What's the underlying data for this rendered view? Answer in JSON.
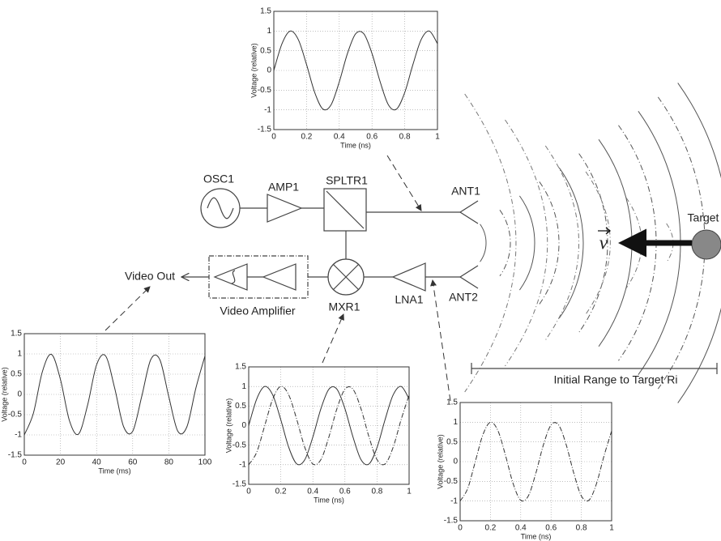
{
  "chart_data": [
    {
      "type": "line",
      "xlabel": "Time (ns)",
      "ylabel": "Voltage (relative)",
      "x": [
        0,
        0.05,
        0.1,
        0.15,
        0.2,
        0.25,
        0.3,
        0.35,
        0.4,
        0.45,
        0.5,
        0.55,
        0.6,
        0.65,
        0.7,
        0.75,
        0.8,
        0.85,
        0.9,
        0.95,
        1
      ],
      "series": [
        {
          "color": "#333333",
          "style": "solid",
          "values": [
            0,
            0.68,
            1.0,
            0.78,
            0.15,
            -0.56,
            -0.98,
            -0.87,
            -0.29,
            0.43,
            0.93,
            0.93,
            0.43,
            -0.29,
            -0.87,
            -0.98,
            -0.56,
            0.15,
            0.78,
            1.0,
            0.68
          ]
        }
      ],
      "xlim": [
        0,
        1
      ],
      "xticks": [
        0,
        0.2,
        0.4,
        0.6,
        0.8,
        1
      ],
      "ylim": [
        -1.5,
        1.5
      ],
      "yticks": [
        -1.5,
        -1,
        -0.5,
        0,
        0.5,
        1,
        1.5
      ],
      "grid": true
    },
    {
      "type": "line",
      "xlabel": "Time (ms)",
      "ylabel": "Voltage (relative)",
      "x": [
        0,
        5,
        10,
        15,
        20,
        25,
        30,
        35,
        40,
        45,
        50,
        55,
        60,
        65,
        70,
        75,
        80,
        85,
        90,
        95,
        100
      ],
      "series": [
        {
          "color": "#333333",
          "style": "solid",
          "values": [
            -1.0,
            -0.47,
            0.56,
            0.99,
            0.37,
            -0.65,
            -0.98,
            -0.27,
            0.73,
            0.95,
            0.16,
            -0.8,
            -0.91,
            -0.05,
            0.86,
            0.86,
            -0.06,
            -0.91,
            -0.8,
            0.16,
            0.95
          ]
        }
      ],
      "xlim": [
        0,
        100
      ],
      "xticks": [
        0,
        20,
        40,
        60,
        80,
        100
      ],
      "ylim": [
        -1.5,
        1.5
      ],
      "yticks": [
        -1.5,
        -1,
        -0.5,
        0,
        0.5,
        1,
        1.5
      ],
      "grid": true
    },
    {
      "type": "line",
      "xlabel": "Time (ns)",
      "ylabel": "Voltage (relative)",
      "x": [
        0,
        0.05,
        0.1,
        0.15,
        0.2,
        0.25,
        0.3,
        0.35,
        0.4,
        0.45,
        0.5,
        0.55,
        0.6,
        0.65,
        0.7,
        0.75,
        0.8,
        0.85,
        0.9,
        0.95,
        1
      ],
      "series": [
        {
          "color": "#333333",
          "style": "solid",
          "values": [
            0,
            0.68,
            1.0,
            0.78,
            0.15,
            -0.56,
            -0.98,
            -0.87,
            -0.29,
            0.43,
            0.93,
            0.93,
            0.43,
            -0.29,
            -0.87,
            -0.98,
            -0.56,
            0.15,
            0.78,
            1.0,
            0.68
          ]
        },
        {
          "color": "#333333",
          "style": "dash-dot",
          "values": [
            -1.0,
            -0.68,
            0,
            0.68,
            1.0,
            0.78,
            0.15,
            -0.56,
            -0.98,
            -0.87,
            -0.29,
            0.43,
            0.93,
            0.93,
            0.43,
            -0.29,
            -0.87,
            -0.98,
            -0.56,
            0.15,
            0.78
          ]
        }
      ],
      "xlim": [
        0,
        1
      ],
      "xticks": [
        0,
        0.2,
        0.4,
        0.6,
        0.8,
        1
      ],
      "ylim": [
        -1.5,
        1.5
      ],
      "yticks": [
        -1.5,
        -1,
        -0.5,
        0,
        0.5,
        1,
        1.5
      ],
      "grid": true
    },
    {
      "type": "line",
      "xlabel": "Time (ns)",
      "ylabel": "Voltage (relative)",
      "x": [
        0,
        0.05,
        0.1,
        0.15,
        0.2,
        0.25,
        0.3,
        0.35,
        0.4,
        0.45,
        0.5,
        0.55,
        0.6,
        0.65,
        0.7,
        0.75,
        0.8,
        0.85,
        0.9,
        0.95,
        1
      ],
      "series": [
        {
          "color": "#333333",
          "style": "dash-dot",
          "values": [
            -1.0,
            -0.68,
            0,
            0.68,
            1.0,
            0.78,
            0.15,
            -0.56,
            -0.98,
            -0.87,
            -0.29,
            0.43,
            0.93,
            0.93,
            0.43,
            -0.29,
            -0.87,
            -0.98,
            -0.56,
            0.15,
            0.78
          ]
        }
      ],
      "xlim": [
        0,
        1
      ],
      "xticks": [
        0,
        0.2,
        0.4,
        0.6,
        0.8,
        1
      ],
      "ylim": [
        -1.5,
        1.5
      ],
      "yticks": [
        -1.5,
        -1,
        -0.5,
        0,
        0.5,
        1,
        1.5
      ],
      "grid": true
    }
  ],
  "diagram": {
    "osc": "OSC1",
    "amp": "AMP1",
    "splitter": "SPLTR1",
    "ant1": "ANT1",
    "ant2": "ANT2",
    "lna": "LNA1",
    "mixer": "MXR1",
    "video_out": "Video Out",
    "video_amp": "Video Amplifier",
    "target": "Target",
    "velocity": "v",
    "range": "Initial Range to Target Ri"
  }
}
